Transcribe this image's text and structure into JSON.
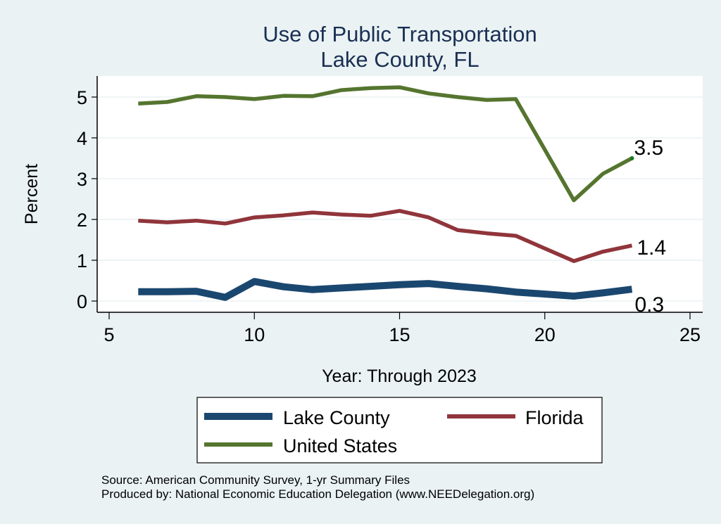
{
  "chart_data": {
    "type": "line",
    "title": "Use of Public Transportation",
    "subtitle": "Lake County, FL",
    "xlabel": "Year: Through 2023",
    "ylabel": "Percent",
    "xlim": [
      5,
      25
    ],
    "ylim": [
      0,
      5
    ],
    "xticks": [
      5,
      10,
      15,
      20,
      25
    ],
    "yticks": [
      0,
      1,
      2,
      3,
      4,
      5
    ],
    "grid": true,
    "legend_position": "bottom",
    "x": [
      6,
      7,
      8,
      9,
      10,
      11,
      12,
      13,
      14,
      15,
      16,
      17,
      18,
      19,
      21,
      22,
      23
    ],
    "series": [
      {
        "name": "Lake County",
        "color": "#1a476f",
        "values": [
          0.23,
          0.23,
          0.24,
          0.09,
          0.48,
          0.35,
          0.28,
          0.32,
          0.36,
          0.4,
          0.43,
          0.36,
          0.3,
          0.22,
          0.12,
          0.2,
          0.29
        ],
        "end_label": "0.3"
      },
      {
        "name": "Florida",
        "color": "#90353b",
        "values": [
          1.97,
          1.93,
          1.97,
          1.9,
          2.05,
          2.1,
          2.17,
          2.12,
          2.09,
          2.21,
          2.05,
          1.74,
          1.66,
          1.6,
          0.98,
          1.21,
          1.36
        ],
        "end_label": "1.4"
      },
      {
        "name": "United States",
        "color": "#55752f",
        "values": [
          4.84,
          4.88,
          5.02,
          5.0,
          4.95,
          5.03,
          5.02,
          5.17,
          5.22,
          5.24,
          5.09,
          5.0,
          4.93,
          4.95,
          2.47,
          3.12,
          3.5
        ],
        "end_label": "3.5"
      }
    ],
    "annotations": [
      "Source: American Community Survey, 1-yr Summary Files",
      "Produced by: National Economic Education Delegation (www.NEEDelegation.org)"
    ]
  }
}
